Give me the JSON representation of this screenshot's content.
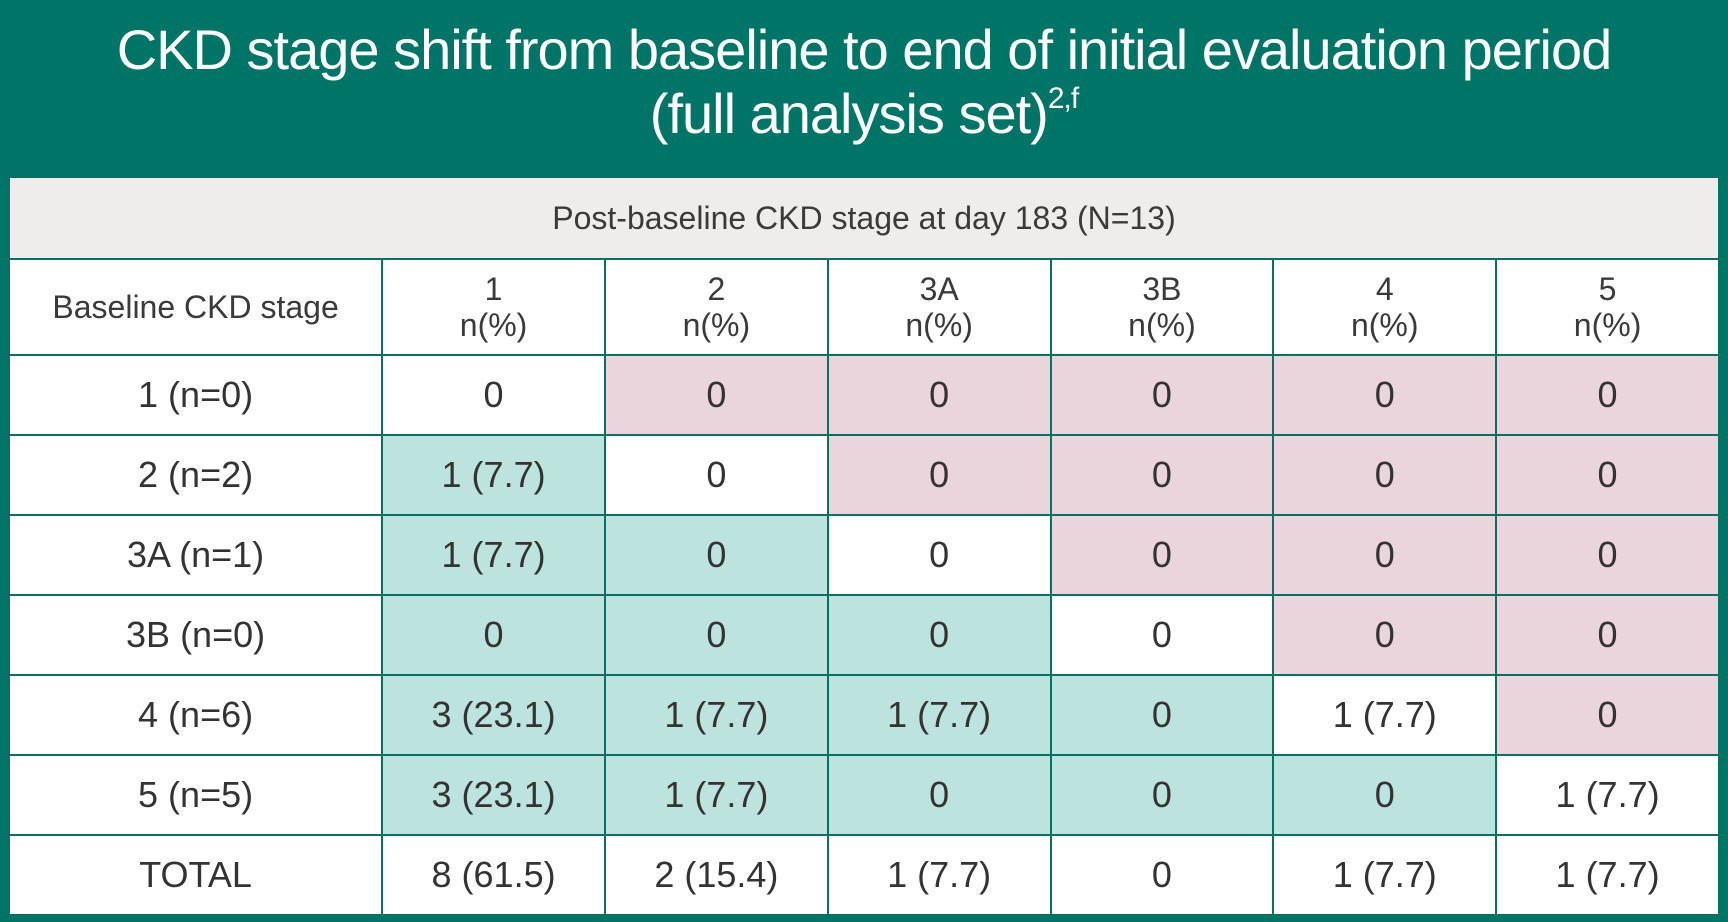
{
  "title": {
    "line1": "CKD stage shift from baseline to end of initial evaluation period",
    "line2": "(full analysis set)",
    "superscript": "2,f"
  },
  "table": {
    "subheader": "Post-baseline CKD stage at day 183 (N=13)",
    "row_header_label": "Baseline CKD stage",
    "unit_label": "n(%)",
    "columns": [
      "1",
      "2",
      "3A",
      "3B",
      "4",
      "5"
    ],
    "rows": [
      {
        "label": "1 (n=0)",
        "cells": [
          "0",
          "0",
          "0",
          "0",
          "0",
          "0"
        ]
      },
      {
        "label": "2 (n=2)",
        "cells": [
          "1 (7.7)",
          "0",
          "0",
          "0",
          "0",
          "0"
        ]
      },
      {
        "label": "3A (n=1)",
        "cells": [
          "1 (7.7)",
          "0",
          "0",
          "0",
          "0",
          "0"
        ]
      },
      {
        "label": "3B (n=0)",
        "cells": [
          "0",
          "0",
          "0",
          "0",
          "0",
          "0"
        ]
      },
      {
        "label": "4 (n=6)",
        "cells": [
          "3 (23.1)",
          "1 (7.7)",
          "1 (7.7)",
          "0",
          "1 (7.7)",
          "0"
        ]
      },
      {
        "label": "5 (n=5)",
        "cells": [
          "3 (23.1)",
          "1 (7.7)",
          "0",
          "0",
          "0",
          "1 (7.7)"
        ]
      }
    ],
    "total": {
      "label": "TOTAL",
      "cells": [
        "8 (61.5)",
        "2 (15.4)",
        "1 (7.7)",
        "0",
        "1 (7.7)",
        "1 (7.7)"
      ]
    }
  },
  "colors": {
    "background": "#007466",
    "improved_cell": "#bde3df",
    "worsened_cell": "#ead5dd",
    "unchanged_cell": "#ffffff",
    "subheader_bg": "#efedeb"
  }
}
